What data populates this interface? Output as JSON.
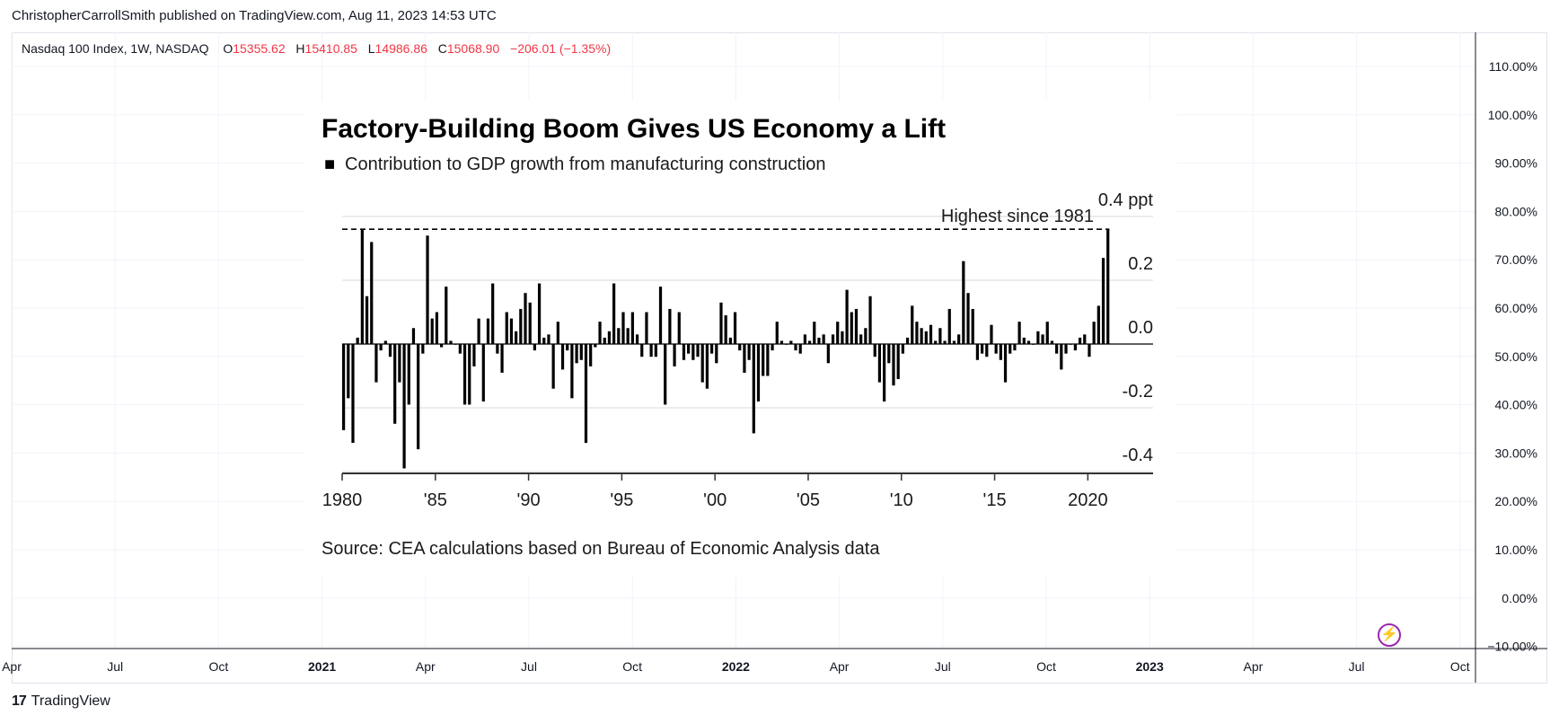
{
  "header": {
    "publisher_line": "ChristopherCarrollSmith published on TradingView.com, Aug 11, 2023 14:53 UTC"
  },
  "legend": {
    "symbol": "Nasdaq 100 Index, 1W, NASDAQ",
    "o_label": "O",
    "o_value": "15355.62",
    "h_label": "H",
    "h_value": "15410.85",
    "l_label": "L",
    "l_value": "14986.86",
    "c_label": "C",
    "c_value": "15068.90",
    "change": "−206.01 (−1.35%)"
  },
  "price_axis": {
    "labels": [
      "110.00%",
      "100.00%",
      "90.00%",
      "80.00%",
      "70.00%",
      "60.00%",
      "50.00%",
      "40.00%",
      "30.00%",
      "20.00%",
      "10.00%",
      "0.00%",
      "−10.00%"
    ]
  },
  "time_axis": {
    "labels": [
      {
        "text": "Apr",
        "bold": false
      },
      {
        "text": "Jul",
        "bold": false
      },
      {
        "text": "Oct",
        "bold": false
      },
      {
        "text": "2021",
        "bold": true
      },
      {
        "text": "Apr",
        "bold": false
      },
      {
        "text": "Jul",
        "bold": false
      },
      {
        "text": "Oct",
        "bold": false
      },
      {
        "text": "2022",
        "bold": true
      },
      {
        "text": "Apr",
        "bold": false
      },
      {
        "text": "Jul",
        "bold": false
      },
      {
        "text": "Oct",
        "bold": false
      },
      {
        "text": "2023",
        "bold": true
      },
      {
        "text": "Apr",
        "bold": false
      },
      {
        "text": "Jul",
        "bold": false
      },
      {
        "text": "Oct",
        "bold": false
      }
    ]
  },
  "footer": {
    "brand_logo": "17",
    "brand_name": "TradingView"
  },
  "colors": {
    "accent_red": "#f23645",
    "grid": "#f0f3fa",
    "bars": "#000000",
    "lightning": "#9c27b0"
  },
  "chart_data": {
    "type": "bar",
    "title": "Factory-Building Boom Gives US Economy a Lift",
    "subtitle": "Contribution to GDP growth from manufacturing construction",
    "legend_marker": "■",
    "source": "Source: CEA calculations based on Bureau of Economic Analysis data",
    "annotation": "Highest since 1981",
    "unit_label": "0.4 ppt",
    "ylim": [
      -0.46,
      0.4
    ],
    "yticks": [
      0.2,
      0.0,
      -0.2,
      -0.4
    ],
    "ytick_labels": [
      "0.2",
      "0.0",
      "-0.2",
      "-0.4"
    ],
    "xlim": [
      1980.0,
      2023.5
    ],
    "xticks": [
      1980,
      1985,
      1990,
      1995,
      2000,
      2005,
      2010,
      2015,
      2020
    ],
    "xtick_labels": [
      "1980",
      "'85",
      "'90",
      "'95",
      "'00",
      "'05",
      "'10",
      "'15",
      "2020"
    ],
    "reference_line": 0.36,
    "start_year": 1980.0,
    "step": 0.25,
    "values": [
      -0.27,
      -0.17,
      -0.31,
      0.02,
      0.36,
      0.15,
      0.32,
      -0.12,
      -0.02,
      0.01,
      -0.04,
      -0.25,
      -0.12,
      -0.39,
      -0.19,
      0.05,
      -0.33,
      -0.03,
      0.34,
      0.08,
      0.1,
      -0.01,
      0.18,
      0.01,
      0.0,
      -0.03,
      -0.19,
      -0.19,
      -0.07,
      0.08,
      -0.18,
      0.08,
      0.19,
      -0.03,
      -0.09,
      0.1,
      0.08,
      0.04,
      0.11,
      0.16,
      0.13,
      -0.02,
      0.19,
      0.02,
      0.03,
      -0.14,
      0.07,
      -0.08,
      -0.02,
      -0.17,
      -0.06,
      -0.05,
      -0.31,
      -0.07,
      -0.01,
      0.07,
      0.02,
      0.04,
      0.19,
      0.05,
      0.1,
      0.05,
      0.1,
      0.03,
      -0.04,
      0.1,
      -0.04,
      -0.04,
      0.18,
      -0.19,
      0.11,
      -0.07,
      0.1,
      -0.05,
      -0.03,
      -0.05,
      -0.04,
      -0.12,
      -0.14,
      -0.03,
      -0.06,
      0.13,
      0.09,
      0.02,
      0.1,
      -0.02,
      -0.09,
      -0.05,
      -0.28,
      -0.18,
      -0.1,
      -0.1,
      -0.02,
      0.07,
      0.01,
      0.0,
      0.01,
      -0.02,
      -0.03,
      0.03,
      0.01,
      0.07,
      0.02,
      0.03,
      -0.06,
      0.03,
      0.07,
      0.04,
      0.17,
      0.1,
      0.11,
      0.03,
      0.05,
      0.15,
      -0.04,
      -0.12,
      -0.18,
      -0.06,
      -0.13,
      -0.11,
      -0.03,
      0.02,
      0.12,
      0.07,
      0.05,
      0.04,
      0.06,
      0.01,
      0.05,
      0.01,
      0.11,
      0.01,
      0.03,
      0.26,
      0.16,
      0.11,
      -0.05,
      -0.03,
      -0.04,
      0.06,
      -0.03,
      -0.05,
      -0.12,
      -0.03,
      -0.02,
      0.07,
      0.02,
      0.01,
      0.0,
      0.04,
      0.03,
      0.07,
      0.01,
      -0.03,
      -0.08,
      -0.03,
      0.0,
      -0.02,
      0.02,
      0.03,
      -0.04,
      0.07,
      0.12,
      0.27,
      0.36
    ]
  }
}
